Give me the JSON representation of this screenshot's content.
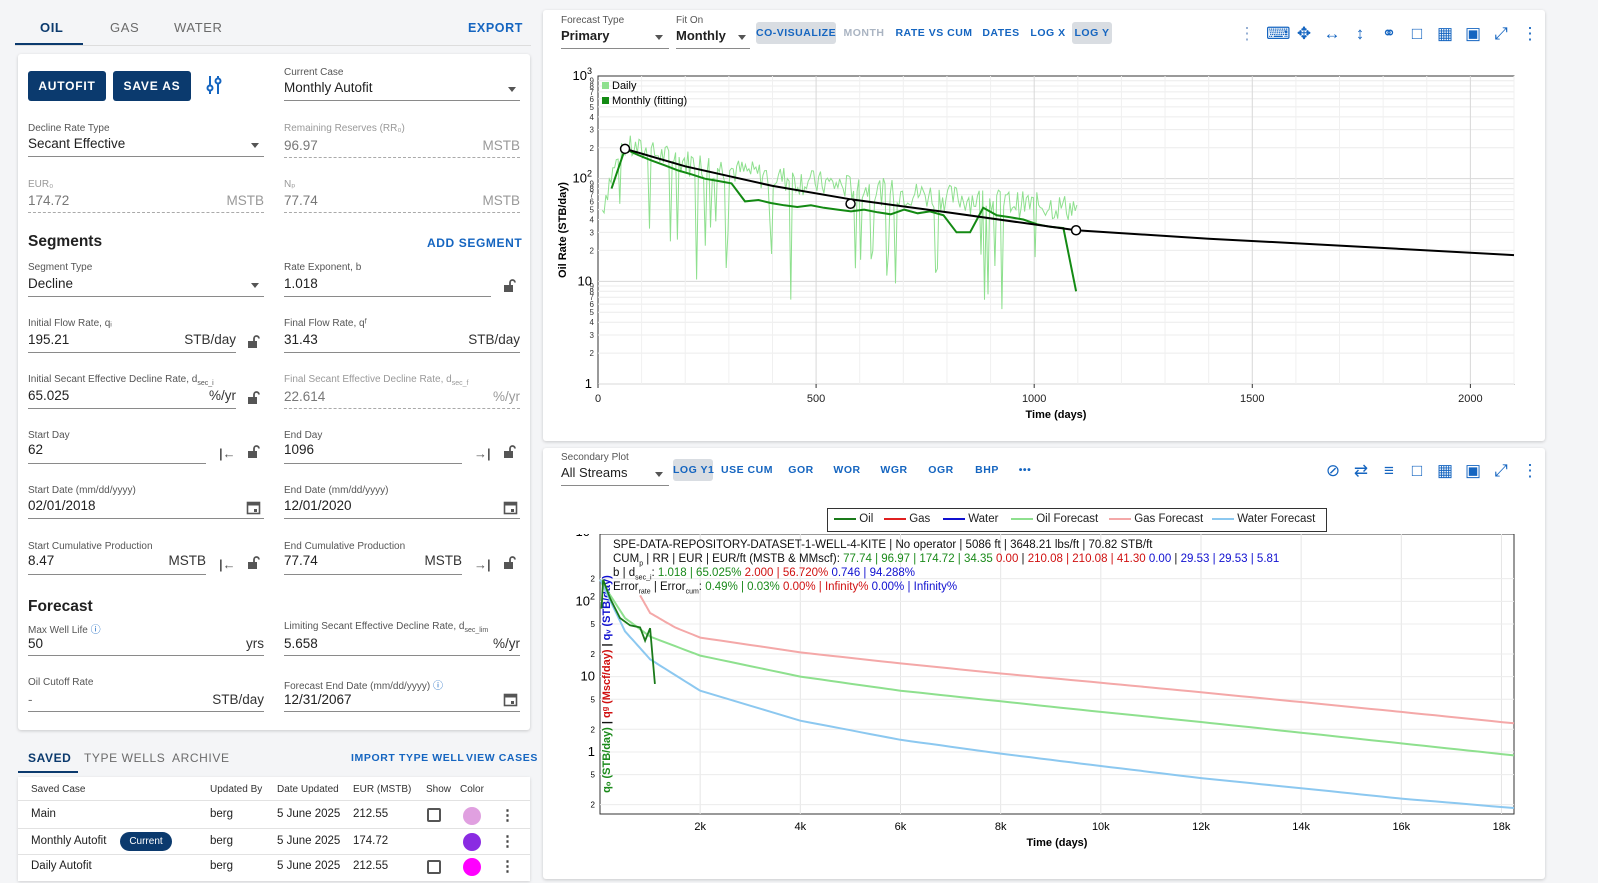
{
  "left": {
    "stream_tabs": [
      "OIL",
      "GAS",
      "WATER"
    ],
    "export_label": "EXPORT",
    "autofit_label": "AUTOFIT",
    "save_as_label": "SAVE AS",
    "current_case": {
      "label": "Current Case",
      "value": "Monthly Autofit"
    },
    "decline_rate_type": {
      "label": "Decline Rate Type",
      "value": "Secant Effective"
    },
    "remaining_reserves": {
      "label": "Remaining Reserves (RR₀)",
      "value": "96.97",
      "unit": "MSTB"
    },
    "eur": {
      "label": "EUR₀",
      "value": "174.72",
      "unit": "MSTB"
    },
    "np": {
      "label": "Nₚ",
      "value": "77.74",
      "unit": "MSTB"
    },
    "segments_title": "Segments",
    "add_segment_label": "ADD SEGMENT",
    "segment_type": {
      "label": "Segment Type",
      "value": "Decline"
    },
    "rate_exponent": {
      "label": "Rate Exponent, b",
      "value": "1.018"
    },
    "initial_flow_rate": {
      "label": "Initial Flow Rate, qᵢ",
      "value": "195.21",
      "unit": "STB/day"
    },
    "final_flow_rate": {
      "label": "Final Flow Rate, qᶠ",
      "value": "31.43",
      "unit": "STB/day"
    },
    "initial_decline": {
      "label": "Initial Secant Effective Decline Rate, d",
      "sub": "sec_i",
      "value": "65.025",
      "unit": "%/yr"
    },
    "final_decline": {
      "label": "Final Secant Effective Decline Rate, d",
      "sub": "sec_f",
      "value": "22.614",
      "unit": "%/yr"
    },
    "start_day": {
      "label": "Start Day",
      "value": "62"
    },
    "end_day": {
      "label": "End Day",
      "value": "1096"
    },
    "start_date": {
      "label": "Start Date (mm/dd/yyyy)",
      "value": "02/01/2018"
    },
    "end_date": {
      "label": "End Date (mm/dd/yyyy)",
      "value": "12/01/2020"
    },
    "start_cum": {
      "label": "Start Cumulative Production",
      "value": "8.47",
      "unit": "MSTB"
    },
    "end_cum": {
      "label": "End Cumulative Production",
      "value": "77.74",
      "unit": "MSTB"
    },
    "forecast_title": "Forecast",
    "max_well_life": {
      "label": "Max Well Life",
      "value": "50",
      "unit": "yrs"
    },
    "limiting_decline": {
      "label": "Limiting Secant Effective Decline Rate, d",
      "sub": "sec_lim",
      "value": "5.658",
      "unit": "%/yr"
    },
    "oil_cutoff": {
      "label": "Oil Cutoff Rate",
      "value": "-",
      "unit": "STB/day"
    },
    "forecast_end_date": {
      "label": "Forecast End Date (mm/dd/yyyy)",
      "value": "12/31/2067"
    }
  },
  "cases": {
    "tabs": [
      "SAVED",
      "TYPE WELLS",
      "ARCHIVE"
    ],
    "import_label": "IMPORT TYPE WELL",
    "view_cases_label": "VIEW CASES",
    "headers": [
      "Saved Case",
      "Updated By",
      "Date Updated",
      "EUR (MSTB)",
      "Show",
      "Color"
    ],
    "current_badge": "Current",
    "rows": [
      {
        "name": "Main",
        "by": "berg",
        "date": "5 June 2025",
        "eur": "212.55",
        "color": "#e0a0e0",
        "current": false,
        "show_box": true
      },
      {
        "name": "Monthly Autofit",
        "by": "berg",
        "date": "5 June 2025",
        "eur": "174.72",
        "color": "#8a2be2",
        "current": true,
        "show_box": false
      },
      {
        "name": "Daily Autofit",
        "by": "berg",
        "date": "5 June 2025",
        "eur": "212.55",
        "color": "#ff00ff",
        "current": false,
        "show_box": true
      }
    ]
  },
  "top_chart": {
    "forecast_type": {
      "label": "Forecast Type",
      "value": "Primary"
    },
    "fit_on": {
      "label": "Fit On",
      "value": "Monthly"
    },
    "buttons": [
      "CO-VISUALIZE",
      "MONTH",
      "RATE VS CUM",
      "DATES",
      "LOG X",
      "LOG Y"
    ],
    "legend": [
      "Daily",
      "Monthly (fitting)"
    ],
    "ylabel": "Oil Rate (STB/day)",
    "xlabel": "Time (days)",
    "x_ticks": [
      "0",
      "500",
      "1000",
      "1500",
      "2000"
    ],
    "y_major_ticks": [
      "1",
      "10",
      "10²",
      "10³"
    ]
  },
  "bottom_chart": {
    "secondary_plot": {
      "label": "Secondary Plot",
      "value": "All Streams"
    },
    "buttons": [
      "LOG Y1",
      "USE CUM",
      "GOR",
      "WOR",
      "WGR",
      "OGR",
      "BHP",
      "•••"
    ],
    "legend": [
      {
        "name": "Oil",
        "color": "#1a7a1a"
      },
      {
        "name": "Gas",
        "color": "#e02020"
      },
      {
        "name": "Water",
        "color": "#1010d0"
      },
      {
        "name": "Oil Forecast",
        "color": "#8ee08e"
      },
      {
        "name": "Gas Forecast",
        "color": "#f4a8a8"
      },
      {
        "name": "Water Forecast",
        "color": "#8cc8f0"
      }
    ],
    "info_line1": "SPE-DATA-REPOSITORY-DATASET-1-WELL-4-KITE | No operator | 5086 ft | 3648.21 lbs/ft | 70.82 STB/ft",
    "info_line2": {
      "prefix": "CUM",
      "prefix_sub": "p",
      "prefix_rest": " | RR | EUR | EUR/ft (MSTB & MMscf): ",
      "oil": "77.74 | 96.97 | 174.72 | 34.35",
      "gas_a": "0.00",
      "gas_b": "210.08 | 210.08 | 41.30",
      "water_a": "0.00",
      "water_b": "29.53 | 29.53 | 5.81"
    },
    "info_line3": {
      "prefix": "b | d",
      "prefix_sub": "sec_i",
      "prefix_rest": ": ",
      "oil": "1.018 | 65.025%",
      "gas": "2.000 | 56.720%",
      "water": "0.746 | 94.288%"
    },
    "info_line4": {
      "prefix": "Error",
      "sub1": "rate",
      "mid": " | Error",
      "sub2": "cum",
      "prefix_rest": ": ",
      "oil": "0.49% | 0.03%",
      "gas": "0.00% | Infinity%",
      "water": "0.00% | Infinity%"
    },
    "ylabel_oil": "qₒ (STB/day)",
    "ylabel_gas": "qᵍ (Mscf/day)",
    "ylabel_water": "qᵥ (STB/day)",
    "xlabel": "Time (days)",
    "x_ticks": [
      "2k",
      "4k",
      "6k",
      "8k",
      "10k",
      "12k",
      "14k",
      "16k",
      "18k"
    ],
    "y_major_ticks": [
      "1",
      "10",
      "10²",
      "10³"
    ]
  },
  "chart_data": [
    {
      "type": "line",
      "title": "",
      "xlabel": "Time (days)",
      "ylabel": "Oil Rate (STB/day)",
      "xlim": [
        0,
        2100
      ],
      "ylim": [
        1,
        1000
      ],
      "yscale": "log",
      "legend": "top-left",
      "series": [
        {
          "name": "Monthly (fitting)",
          "color": "#138a13",
          "x": [
            31,
            62,
            92,
            123,
            153,
            184,
            215,
            245,
            276,
            306,
            337,
            368,
            396,
            427,
            457,
            488,
            518,
            549,
            580,
            610,
            641,
            671,
            702,
            733,
            761,
            792,
            822,
            853,
            883,
            914,
            945,
            975,
            1006,
            1036,
            1067,
            1096
          ],
          "values": [
            80,
            195,
            170,
            150,
            135,
            120,
            110,
            100,
            95,
            90,
            60,
            62,
            58,
            55,
            53,
            55,
            52,
            50,
            48,
            50,
            47,
            45,
            50,
            46,
            48,
            44,
            30,
            30,
            52,
            44,
            42,
            40,
            36,
            34,
            33,
            8
          ]
        },
        {
          "name": "Forecast fit",
          "color": "#000000",
          "x": [
            62,
            200,
            400,
            579,
            800,
            1096,
            1400,
            1700,
            2100
          ],
          "values": [
            195.21,
            132,
            85,
            63,
            47,
            31.43,
            26,
            22.3,
            18
          ]
        }
      ],
      "markers": [
        {
          "x": 62,
          "y": 195.21
        },
        {
          "x": 579,
          "y": 57
        },
        {
          "x": 1096,
          "y": 31.43
        }
      ]
    },
    {
      "type": "line",
      "title": "",
      "xlabel": "Time (days)",
      "ylabel": "q (STB/day, Mscf/day)",
      "xlim": [
        0,
        18250
      ],
      "ylim": [
        0.15,
        1000
      ],
      "yscale": "log",
      "legend": "top-center",
      "series": [
        {
          "name": "Oil Forecast",
          "color": "#8ee08e",
          "x": [
            0,
            500,
            1000,
            2000,
            4000,
            6000,
            8000,
            10000,
            12000,
            14000,
            16000,
            18250
          ],
          "values": [
            195,
            60,
            34,
            19,
            10,
            6.5,
            4.7,
            3.4,
            2.5,
            1.8,
            1.3,
            0.9
          ]
        },
        {
          "name": "Gas Forecast",
          "color": "#f4a8a8",
          "x": [
            800,
            1000,
            1500,
            2000,
            4000,
            6000,
            8000,
            10000,
            12000,
            14000,
            16000,
            18250
          ],
          "values": [
            120,
            70,
            45,
            33,
            21,
            15,
            11,
            8.3,
            6.2,
            4.6,
            3.4,
            2.4
          ]
        },
        {
          "name": "Water Forecast",
          "color": "#8cc8f0",
          "x": [
            0,
            500,
            1000,
            2000,
            4000,
            6000,
            8000,
            10000,
            12000,
            14000,
            16000,
            18250
          ],
          "values": [
            195,
            40,
            17,
            6.5,
            2.6,
            1.45,
            0.95,
            0.65,
            0.45,
            0.33,
            0.24,
            0.18
          ]
        },
        {
          "name": "Oil",
          "color": "#1a7a1a",
          "x": [
            31,
            62,
            200,
            400,
            600,
            800,
            900,
            1000,
            1096
          ],
          "values": [
            80,
            195,
            110,
            60,
            48,
            45,
            30,
            44,
            8
          ]
        }
      ]
    }
  ]
}
